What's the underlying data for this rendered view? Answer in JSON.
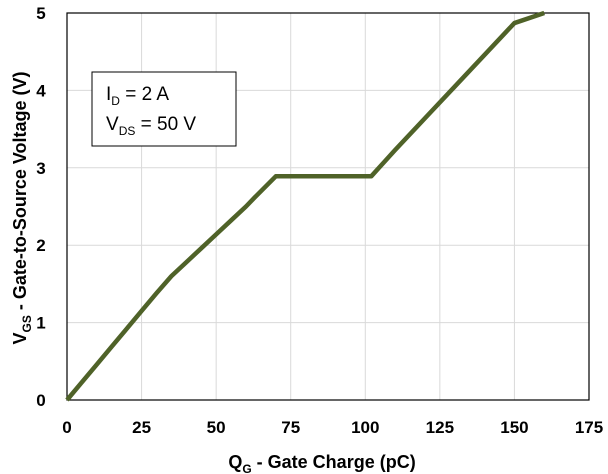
{
  "chart_data": {
    "type": "line",
    "xlabel": {
      "main": "Q",
      "sub": "G",
      "rest": " - Gate Charge (pC)"
    },
    "ylabel": {
      "main": "V",
      "sub": "GS",
      "rest": " - Gate-to-Source Voltage (V)"
    },
    "xlim": [
      0,
      175
    ],
    "ylim": [
      0,
      5
    ],
    "x_ticks": [
      0,
      25,
      50,
      75,
      100,
      125,
      150,
      175
    ],
    "y_ticks": [
      0,
      1,
      2,
      3,
      4,
      5
    ],
    "grid": true,
    "line_color": "#4f6228",
    "annotation": [
      {
        "main": "I",
        "sub": "D",
        "rest": " = 2 A"
      },
      {
        "main": "V",
        "sub": "DS",
        "rest": " = 50 V"
      }
    ],
    "series": [
      {
        "x": [
          0,
          5,
          10,
          15,
          20,
          25,
          30,
          35,
          40,
          45,
          50,
          55,
          60,
          63,
          70,
          80,
          90,
          100,
          102,
          110,
          120,
          130,
          140,
          150,
          160
        ],
        "y": [
          0,
          0.23,
          0.46,
          0.69,
          0.92,
          1.15,
          1.38,
          1.6,
          1.78,
          1.96,
          2.14,
          2.32,
          2.5,
          2.62,
          2.89,
          2.89,
          2.89,
          2.89,
          2.89,
          3.23,
          3.64,
          4.05,
          4.46,
          4.87,
          5.0
        ]
      }
    ]
  }
}
